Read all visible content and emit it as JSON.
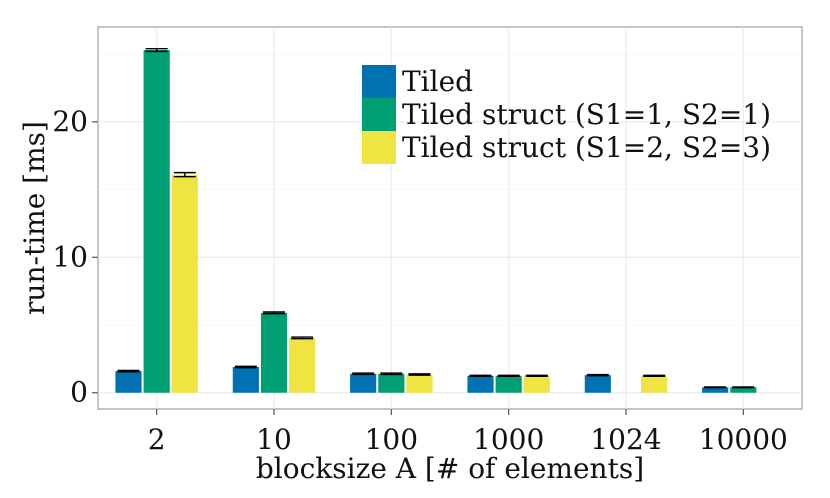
{
  "chart_data": {
    "type": "bar",
    "title": "",
    "xlabel": "blocksize A [# of elements]",
    "ylabel": "run-time [ms]",
    "categories": [
      "2",
      "10",
      "100",
      "1000",
      "1024",
      "10000"
    ],
    "ylim": [
      -1.2,
      27
    ],
    "yticks": [
      0,
      10,
      20
    ],
    "grid": true,
    "legend_position": "top-center",
    "series": [
      {
        "name": "Tiled",
        "color": "#0072B2",
        "values": [
          1.6,
          1.9,
          1.4,
          1.25,
          1.3,
          0.4
        ],
        "errors": [
          0.05,
          0.05,
          0.05,
          0.04,
          0.04,
          0.03
        ]
      },
      {
        "name": "Tiled struct (S1=1, S2=1)",
        "color": "#009E73",
        "values": [
          25.3,
          5.9,
          1.4,
          1.25,
          null,
          0.4
        ],
        "errors": [
          0.1,
          0.06,
          0.05,
          0.04,
          null,
          0.03
        ]
      },
      {
        "name": "Tiled struct (S1=2, S2=3)",
        "color": "#F0E442",
        "values": [
          16.1,
          4.05,
          1.35,
          1.25,
          1.25,
          null
        ],
        "errors": [
          0.15,
          0.06,
          0.05,
          0.04,
          0.04,
          null
        ]
      }
    ]
  }
}
